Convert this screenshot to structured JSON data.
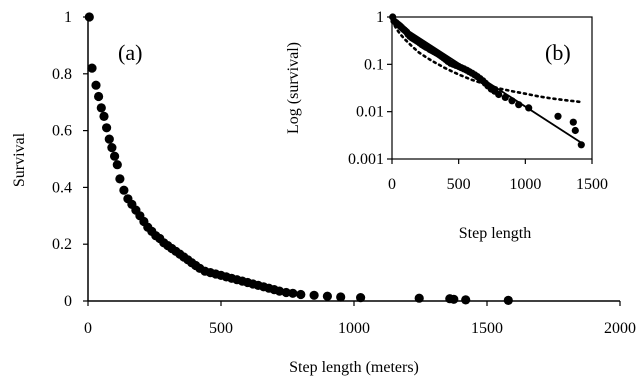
{
  "chart_data": [
    {
      "panel_label": "(a)",
      "type": "scatter",
      "xlabel": "Step length (meters)",
      "ylabel": "Survival",
      "xlim": [
        0,
        2000
      ],
      "ylim": [
        0,
        1
      ],
      "xticks": [
        "0",
        "500",
        "1000",
        "1500",
        "2000"
      ],
      "yticks": [
        "0",
        "0.2",
        "0.4",
        "0.6",
        "0.8",
        "1"
      ],
      "grid": false,
      "series": [
        {
          "marker": "filled-circle",
          "color": "#000000",
          "x": [
            5,
            15,
            30,
            40,
            50,
            60,
            70,
            80,
            90,
            100,
            110,
            120,
            135,
            150,
            165,
            180,
            195,
            210,
            225,
            240,
            255,
            270,
            285,
            300,
            315,
            330,
            345,
            360,
            375,
            390,
            405,
            420,
            440,
            460,
            480,
            500,
            520,
            540,
            560,
            580,
            600,
            620,
            640,
            660,
            680,
            700,
            720,
            745,
            770,
            800,
            850,
            900,
            950,
            1025,
            1245,
            1360,
            1375,
            1420,
            1580
          ],
          "y": [
            1.0,
            0.82,
            0.76,
            0.72,
            0.68,
            0.65,
            0.61,
            0.57,
            0.54,
            0.51,
            0.48,
            0.43,
            0.39,
            0.36,
            0.34,
            0.32,
            0.3,
            0.28,
            0.26,
            0.245,
            0.23,
            0.22,
            0.205,
            0.195,
            0.185,
            0.175,
            0.165,
            0.155,
            0.145,
            0.135,
            0.125,
            0.115,
            0.105,
            0.1,
            0.095,
            0.09,
            0.085,
            0.08,
            0.075,
            0.07,
            0.065,
            0.06,
            0.055,
            0.05,
            0.045,
            0.04,
            0.035,
            0.03,
            0.027,
            0.023,
            0.02,
            0.017,
            0.014,
            0.012,
            0.01,
            0.008,
            0.006,
            0.004,
            0.002
          ]
        }
      ]
    },
    {
      "panel_label": "(b)",
      "type": "scatter",
      "xlabel": "Step length",
      "ylabel": "Log (survival)",
      "xscale": "linear",
      "yscale": "log",
      "xlim": [
        0,
        1500
      ],
      "ylim": [
        0.001,
        1
      ],
      "xticks": [
        "0",
        "500",
        "1000",
        "1500"
      ],
      "yticks": [
        "1",
        "0.1",
        "0.01",
        "0.001"
      ],
      "grid": false,
      "series": [
        {
          "marker": "filled-circle",
          "color": "#000000",
          "x": [
            5,
            15,
            30,
            40,
            50,
            60,
            70,
            80,
            90,
            100,
            110,
            120,
            135,
            150,
            165,
            180,
            195,
            210,
            225,
            240,
            255,
            270,
            285,
            300,
            315,
            330,
            345,
            360,
            375,
            390,
            405,
            420,
            440,
            460,
            480,
            500,
            520,
            540,
            560,
            580,
            600,
            620,
            640,
            660,
            680,
            700,
            720,
            745,
            770,
            800,
            850,
            900,
            950,
            1025,
            1245,
            1360,
            1375,
            1420
          ],
          "y": [
            1.0,
            0.82,
            0.76,
            0.72,
            0.68,
            0.65,
            0.61,
            0.57,
            0.54,
            0.51,
            0.48,
            0.43,
            0.39,
            0.36,
            0.34,
            0.32,
            0.3,
            0.28,
            0.26,
            0.245,
            0.23,
            0.22,
            0.205,
            0.195,
            0.185,
            0.175,
            0.165,
            0.155,
            0.145,
            0.135,
            0.125,
            0.115,
            0.105,
            0.1,
            0.095,
            0.09,
            0.085,
            0.08,
            0.075,
            0.07,
            0.065,
            0.06,
            0.055,
            0.05,
            0.045,
            0.04,
            0.035,
            0.03,
            0.027,
            0.023,
            0.02,
            0.017,
            0.014,
            0.012,
            0.008,
            0.006,
            0.004,
            0.002
          ]
        },
        {
          "line_style": "solid",
          "color": "#000000",
          "x": [
            0,
            1420
          ],
          "y": [
            0.85,
            0.0022
          ]
        },
        {
          "line_style": "dotted",
          "color": "#000000",
          "x": [
            0,
            30,
            60,
            100,
            150,
            200,
            250,
            300,
            400,
            500,
            600,
            700,
            800,
            900,
            1000,
            1100,
            1200,
            1300,
            1420
          ],
          "y": [
            0.85,
            0.58,
            0.44,
            0.33,
            0.24,
            0.18,
            0.145,
            0.118,
            0.083,
            0.061,
            0.047,
            0.038,
            0.031,
            0.027,
            0.024,
            0.021,
            0.019,
            0.0175,
            0.016
          ]
        }
      ]
    }
  ]
}
